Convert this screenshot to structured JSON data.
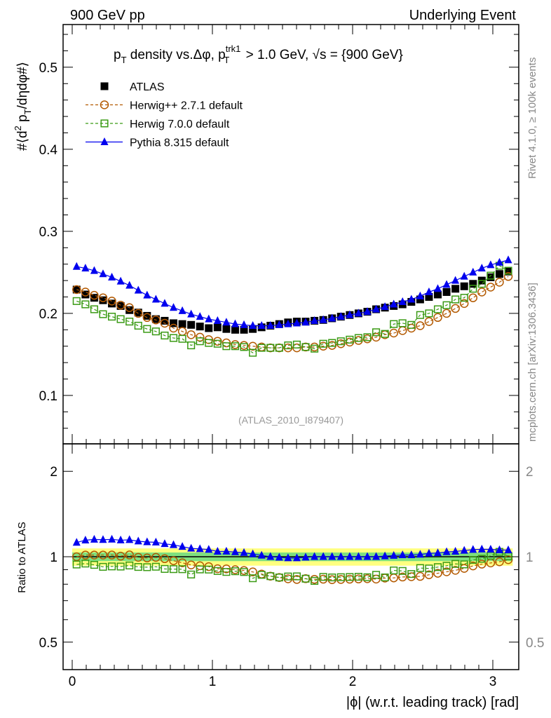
{
  "header": {
    "left": "900 GeV pp",
    "right": "Underlying Event"
  },
  "side_labels": {
    "top": "Rivet 4.1.0, ≥ 100k events",
    "bottom": "mcplots.cern.ch [arXiv:1306.3436]"
  },
  "chart_data": {
    "type": "scatter",
    "title": "p_T density vs.Δφ, p_T^trk1 > 1.0 GeV, √s = {900 GeV}",
    "title_parts": {
      "a": "p",
      "a_sub": "T",
      "b": " density vs.Δφ, p",
      "b_sup": "trk1",
      "b_sub": "T",
      "c": " > 1.0 GeV, √s = {900 GeV}"
    },
    "ylabel": "#⟨d² p_T/dηdφ#⟩",
    "ylabel_parts": {
      "a": "#⟨d",
      "sup": "2",
      "b": " p",
      "sub": "T",
      "c": "/dηdφ#⟩"
    },
    "xlabel": "|ϕ| (w.r.t. leading track) [rad]",
    "ratio_ylabel": "Ratio to ATLAS",
    "annotation": "(ATLAS_2010_I879407)",
    "xlim": [
      -0.065,
      3.185
    ],
    "ylim": [
      0.041,
      0.552
    ],
    "ratio_ylim": [
      0.4,
      2.5
    ],
    "ratio_scale": "log",
    "xticks": [
      "0",
      "1",
      "2",
      "3"
    ],
    "yticks": [
      "0.1",
      "0.2",
      "0.3",
      "0.4",
      "0.5"
    ],
    "ratio_yticks": [
      "0.5",
      "1",
      "2"
    ],
    "legend_position": "top-left",
    "nbins": 50,
    "series": [
      {
        "name": "ATLAS",
        "color": "#000000",
        "marker": "square-filled",
        "values": [
          0.229,
          0.223,
          0.219,
          0.216,
          0.212,
          0.209,
          0.204,
          0.201,
          0.197,
          0.193,
          0.191,
          0.188,
          0.187,
          0.186,
          0.184,
          0.182,
          0.183,
          0.181,
          0.18,
          0.18,
          0.181,
          0.183,
          0.185,
          0.187,
          0.189,
          0.19,
          0.19,
          0.191,
          0.192,
          0.194,
          0.196,
          0.198,
          0.2,
          0.202,
          0.205,
          0.207,
          0.209,
          0.211,
          0.214,
          0.217,
          0.22,
          0.223,
          0.226,
          0.23,
          0.233,
          0.236,
          0.24,
          0.244,
          0.248,
          0.251
        ]
      },
      {
        "name": "Herwig++ 2.7.1 default",
        "color": "#b35900",
        "marker": "circle-open",
        "line": "dashed",
        "values": [
          0.229,
          0.226,
          0.222,
          0.219,
          0.215,
          0.21,
          0.207,
          0.2,
          0.195,
          0.192,
          0.188,
          0.182,
          0.178,
          0.174,
          0.171,
          0.168,
          0.166,
          0.164,
          0.162,
          0.161,
          0.16,
          0.159,
          0.158,
          0.158,
          0.158,
          0.158,
          0.159,
          0.159,
          0.16,
          0.161,
          0.163,
          0.165,
          0.167,
          0.169,
          0.171,
          0.174,
          0.176,
          0.179,
          0.182,
          0.185,
          0.19,
          0.195,
          0.2,
          0.206,
          0.212,
          0.219,
          0.226,
          0.232,
          0.238,
          0.245
        ]
      },
      {
        "name": "Herwig 7.0.0 default",
        "color": "#3a9a14",
        "marker": "square-open",
        "line": "dashed",
        "values": [
          0.215,
          0.211,
          0.205,
          0.199,
          0.196,
          0.193,
          0.19,
          0.185,
          0.181,
          0.178,
          0.173,
          0.17,
          0.169,
          0.161,
          0.166,
          0.164,
          0.163,
          0.16,
          0.16,
          0.159,
          0.152,
          0.158,
          0.158,
          0.158,
          0.161,
          0.162,
          0.159,
          0.157,
          0.163,
          0.164,
          0.166,
          0.168,
          0.17,
          0.171,
          0.177,
          0.175,
          0.187,
          0.188,
          0.186,
          0.198,
          0.2,
          0.205,
          0.21,
          0.217,
          0.219,
          0.23,
          0.236,
          0.246,
          0.258,
          0.252
        ]
      },
      {
        "name": "Pythia 8.315 default",
        "color": "#0000ee",
        "marker": "triangle-filled",
        "line": "solid",
        "values": [
          0.257,
          0.255,
          0.252,
          0.248,
          0.244,
          0.239,
          0.234,
          0.228,
          0.222,
          0.217,
          0.212,
          0.207,
          0.203,
          0.199,
          0.196,
          0.193,
          0.191,
          0.189,
          0.187,
          0.186,
          0.185,
          0.185,
          0.185,
          0.186,
          0.187,
          0.188,
          0.189,
          0.191,
          0.192,
          0.194,
          0.196,
          0.198,
          0.2,
          0.202,
          0.205,
          0.208,
          0.211,
          0.214,
          0.217,
          0.221,
          0.226,
          0.23,
          0.235,
          0.24,
          0.245,
          0.25,
          0.255,
          0.259,
          0.262,
          0.265
        ]
      }
    ],
    "ratio_band": {
      "inner": 0.035,
      "outer": 0.07,
      "inner_color": "#7fe07f",
      "outer_color": "#ffff80"
    }
  }
}
